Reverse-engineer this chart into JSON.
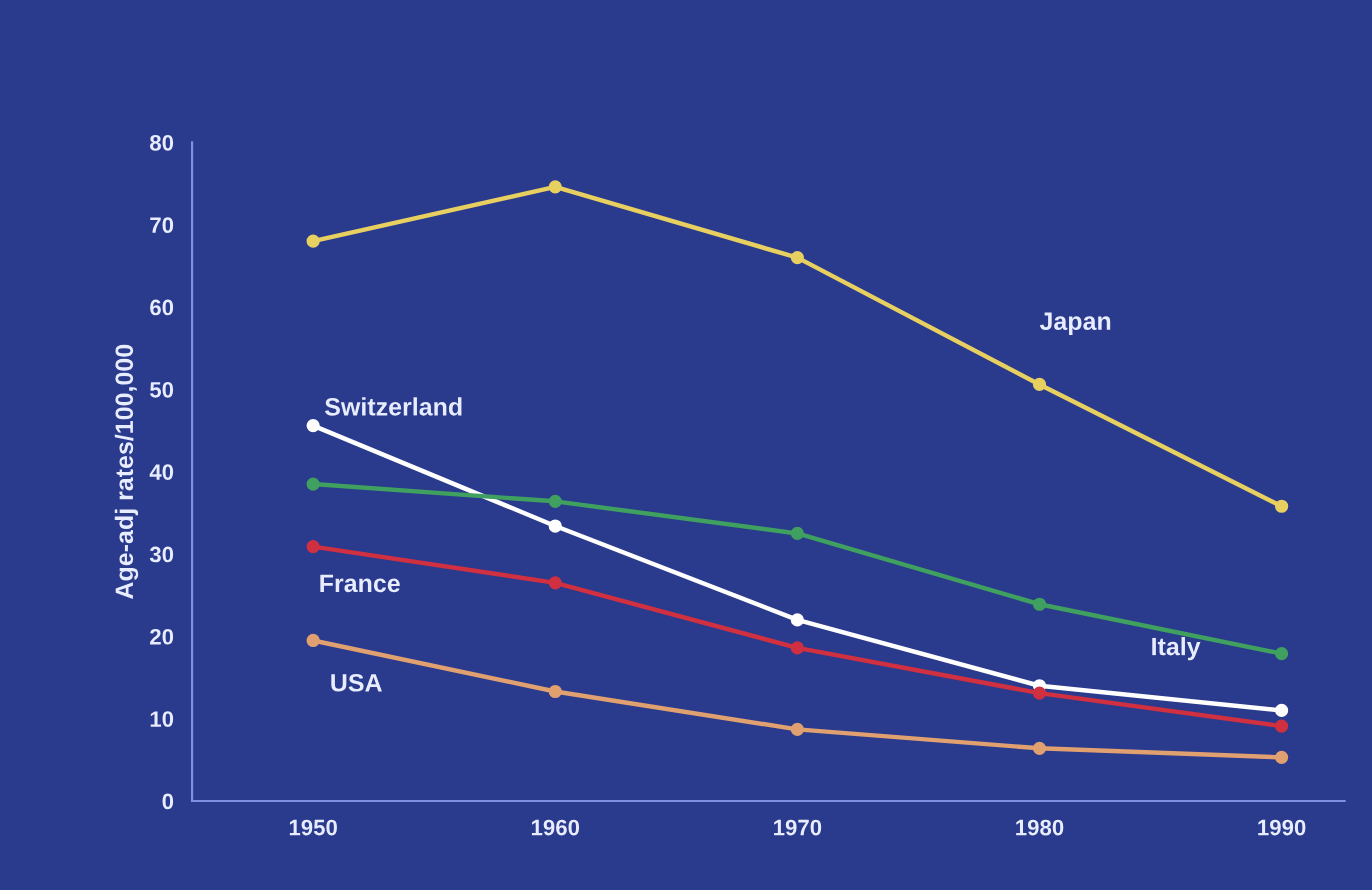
{
  "chart_data": {
    "type": "line",
    "ylabel": "Age-adj rates/100,000",
    "x": [
      1950,
      1960,
      1970,
      1980,
      1990
    ],
    "series": [
      {
        "name": "Japan",
        "color": "#e8d060",
        "values": [
          68.0,
          74.6,
          66.0,
          50.6,
          35.8
        ]
      },
      {
        "name": "Switzerland",
        "color": "#ffffff",
        "values": [
          45.6,
          33.4,
          22.0,
          14.0,
          11.0
        ]
      },
      {
        "name": "Italy",
        "color": "#3fa060",
        "values": [
          38.5,
          36.4,
          32.5,
          23.9,
          17.9
        ]
      },
      {
        "name": "France",
        "color": "#d03040",
        "values": [
          30.9,
          26.5,
          18.6,
          13.1,
          9.1
        ]
      },
      {
        "name": "USA",
        "color": "#e0a070",
        "values": [
          19.5,
          13.3,
          8.7,
          6.4,
          5.3
        ]
      }
    ],
    "xlim": [
      1945,
      1992.6
    ],
    "xticks": [
      1950,
      1960,
      1970,
      1980,
      1990
    ],
    "ylim": [
      0,
      80
    ],
    "yticks": [
      0,
      10,
      20,
      30,
      40,
      50,
      60,
      70,
      80
    ],
    "grid": false,
    "legend": false,
    "marker": "circle",
    "line_style": "solid"
  }
}
